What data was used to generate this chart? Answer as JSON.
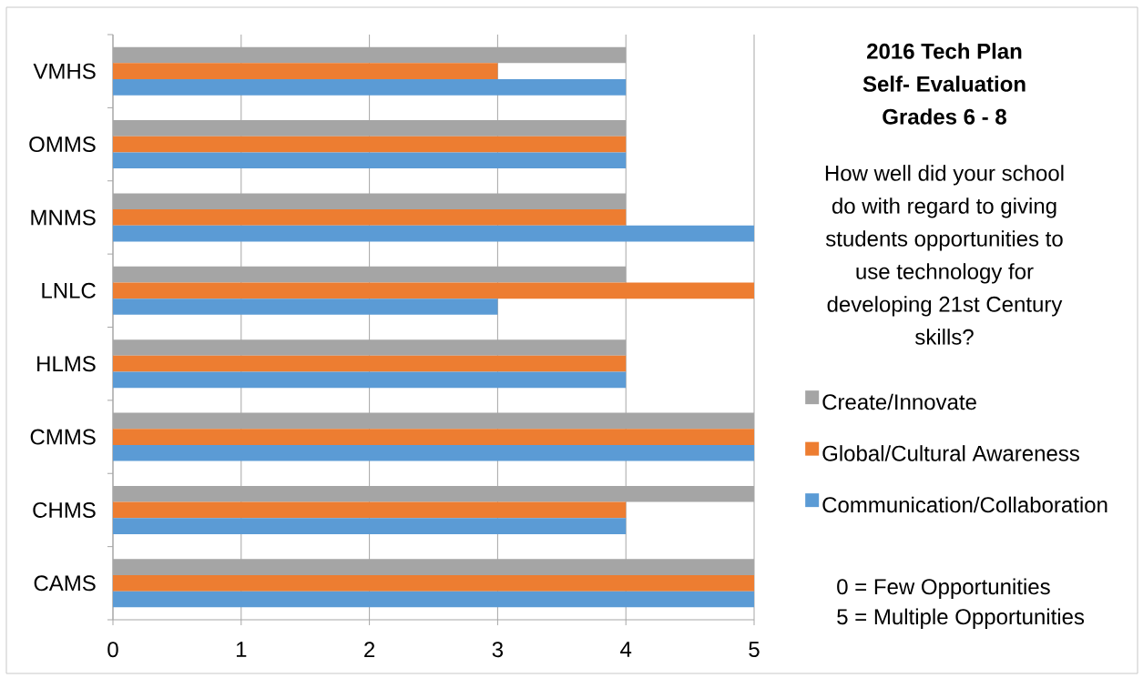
{
  "chart_data": {
    "type": "bar",
    "orientation": "horizontal",
    "title": "2016 Tech Plan Self- Evaluation Grades 6 - 8",
    "subtitle": "How well did your school do with regard to giving students opportunities to use technology for developing 21st Century skills?",
    "categories": [
      "VMHS",
      "OMMS",
      "MNMS",
      "LNLC",
      "HLMS",
      "CMMS",
      "CHMS",
      "CAMS"
    ],
    "series": [
      {
        "name": "Create/Innovate",
        "color": "#a5a5a5",
        "values": [
          4,
          4,
          4,
          4,
          4,
          5,
          5,
          5
        ]
      },
      {
        "name": "Global/Cultural Awareness",
        "color": "#ed7d31",
        "values": [
          3,
          4,
          4,
          5,
          4,
          5,
          4,
          5
        ]
      },
      {
        "name": "Communication/Collaboration",
        "color": "#5b9bd5",
        "values": [
          4,
          4,
          5,
          3,
          4,
          5,
          4,
          5
        ]
      }
    ],
    "xlim": [
      0,
      5
    ],
    "xticks": [
      0,
      1,
      2,
      3,
      4,
      5
    ],
    "grid": "x",
    "legend": "right",
    "annotations": [
      "0 = Few Opportunities",
      "5 = Multiple Opportunities"
    ]
  }
}
